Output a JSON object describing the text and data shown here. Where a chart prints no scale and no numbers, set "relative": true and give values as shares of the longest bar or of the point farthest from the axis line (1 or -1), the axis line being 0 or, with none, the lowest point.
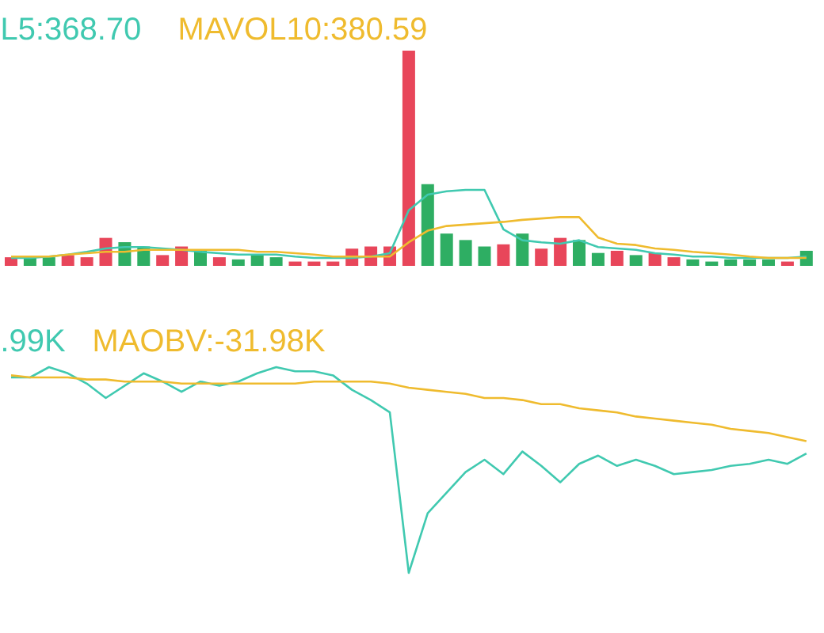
{
  "chart_data": [
    {
      "type": "bar",
      "relative": true,
      "categories": [
        null,
        null,
        null,
        null,
        null,
        null,
        null,
        null,
        null,
        null,
        null,
        null,
        null,
        null,
        null,
        null,
        null,
        null,
        null,
        null,
        null,
        null,
        null,
        null,
        null,
        null,
        null,
        null,
        null,
        null,
        null,
        null,
        null,
        null,
        null,
        null,
        null,
        null,
        null,
        null,
        null,
        null,
        null
      ],
      "series": [
        {
          "colors": [
            "#e8465a",
            "#2eae63",
            "#2eae63",
            "#e8465a",
            "#e8465a",
            "#e8465a",
            "#2eae63",
            "#2eae63",
            "#e8465a",
            "#e8465a",
            "#2eae63",
            "#e8465a",
            "#2eae63",
            "#2eae63",
            "#2eae63",
            "#e8465a",
            "#e8465a",
            "#e8465a",
            "#e8465a",
            "#e8465a",
            "#e8465a",
            "#e8465a",
            "#2eae63",
            "#2eae63",
            "#2eae63",
            "#2eae63",
            "#e8465a",
            "#2eae63",
            "#e8465a",
            "#e8465a",
            "#2eae63",
            "#2eae63",
            "#e8465a",
            "#2eae63",
            "#e8465a",
            "#e8465a",
            "#2eae63",
            "#2eae63",
            "#2eae63",
            "#2eae63",
            "#2eae63",
            "#e8465a",
            "#2eae63"
          ],
          "values": [
            0.04,
            0.04,
            0.04,
            0.05,
            0.04,
            0.13,
            0.11,
            0.09,
            0.05,
            0.09,
            0.07,
            0.04,
            0.03,
            0.05,
            0.04,
            0.02,
            0.02,
            0.02,
            0.08,
            0.09,
            0.09,
            1,
            0.38,
            0.15,
            0.12,
            0.09,
            0.1,
            0.15,
            0.08,
            0.13,
            0.12,
            0.06,
            0.07,
            0.05,
            0.06,
            0.04,
            0.03,
            0.02,
            0.03,
            0.03,
            0.03,
            0.02,
            0.07
          ]
        }
      ]
    },
    {
      "type": "line",
      "relative": true,
      "categories": [
        null,
        null,
        null,
        null,
        null,
        null,
        null,
        null,
        null,
        null,
        null,
        null,
        null,
        null,
        null,
        null,
        null,
        null,
        null,
        null,
        null,
        null,
        null,
        null,
        null,
        null,
        null,
        null,
        null,
        null,
        null,
        null,
        null,
        null,
        null,
        null,
        null,
        null,
        null,
        null,
        null,
        null,
        null
      ],
      "series": [
        {
          "name": "L5:368.70",
          "color": "#40c9b0",
          "values": [
            0,
            0,
            0.02,
            0.05,
            0.09,
            0.14,
            0.16,
            0.16,
            0.14,
            0.12,
            0.09,
            0.07,
            0.05,
            0.05,
            0.05,
            0.02,
            0,
            0,
            0,
            0.02,
            0.07,
            0.7,
            0.93,
            0.98,
            1,
            1,
            0.42,
            0.26,
            0.23,
            0.21,
            0.26,
            0.16,
            0.14,
            0.12,
            0.07,
            0.05,
            0.02,
            0.02,
            0,
            0,
            0,
            0,
            0.02
          ]
        },
        {
          "name": "MAVOL10:380.59",
          "color": "#efbb2e",
          "values": [
            0.02,
            0.02,
            0.02,
            0.05,
            0.07,
            0.09,
            0.09,
            0.12,
            0.12,
            0.12,
            0.12,
            0.12,
            0.12,
            0.09,
            0.09,
            0.07,
            0.05,
            0.02,
            0.02,
            0.02,
            0.02,
            0.23,
            0.4,
            0.47,
            0.49,
            0.51,
            0.53,
            0.56,
            0.58,
            0.6,
            0.6,
            0.3,
            0.21,
            0.19,
            0.14,
            0.12,
            0.09,
            0.07,
            0.05,
            0.02,
            0,
            0,
            0
          ]
        }
      ]
    },
    {
      "type": "line",
      "relative": true,
      "categories": [
        null,
        null,
        null,
        null,
        null,
        null,
        null,
        null,
        null,
        null,
        null,
        null,
        null,
        null,
        null,
        null,
        null,
        null,
        null,
        null,
        null,
        null,
        null,
        null,
        null,
        null,
        null,
        null,
        null,
        null,
        null,
        null,
        null,
        null,
        null,
        null,
        null,
        null,
        null,
        null,
        null,
        null,
        null
      ],
      "series": [
        {
          "name": ".99K",
          "color": "#40c9b0",
          "values": [
            0.95,
            0.95,
            1.0,
            0.97,
            0.92,
            0.85,
            0.91,
            0.97,
            0.93,
            0.88,
            0.93,
            0.91,
            0.93,
            0.97,
            1.0,
            0.98,
            0.98,
            0.96,
            0.89,
            0.84,
            0.78,
            0,
            0.29,
            0.39,
            0.49,
            0.55,
            0.48,
            0.59,
            0.52,
            0.44,
            0.53,
            0.57,
            0.52,
            0.55,
            0.52,
            0.48,
            0.49,
            0.5,
            0.52,
            0.53,
            0.55,
            0.53,
            0.58
          ]
        },
        {
          "name": "MAOBV:-31.98K",
          "color": "#efbb2e",
          "values": [
            0.96,
            0.95,
            0.95,
            0.95,
            0.94,
            0.94,
            0.93,
            0.93,
            0.93,
            0.92,
            0.92,
            0.92,
            0.92,
            0.92,
            0.92,
            0.92,
            0.93,
            0.93,
            0.93,
            0.93,
            0.92,
            0.9,
            0.89,
            0.88,
            0.87,
            0.85,
            0.85,
            0.84,
            0.82,
            0.82,
            0.8,
            0.79,
            0.78,
            0.76,
            0.75,
            0.74,
            0.73,
            0.72,
            0.7,
            0.69,
            0.68,
            0.66,
            0.64
          ]
        }
      ]
    }
  ]
}
